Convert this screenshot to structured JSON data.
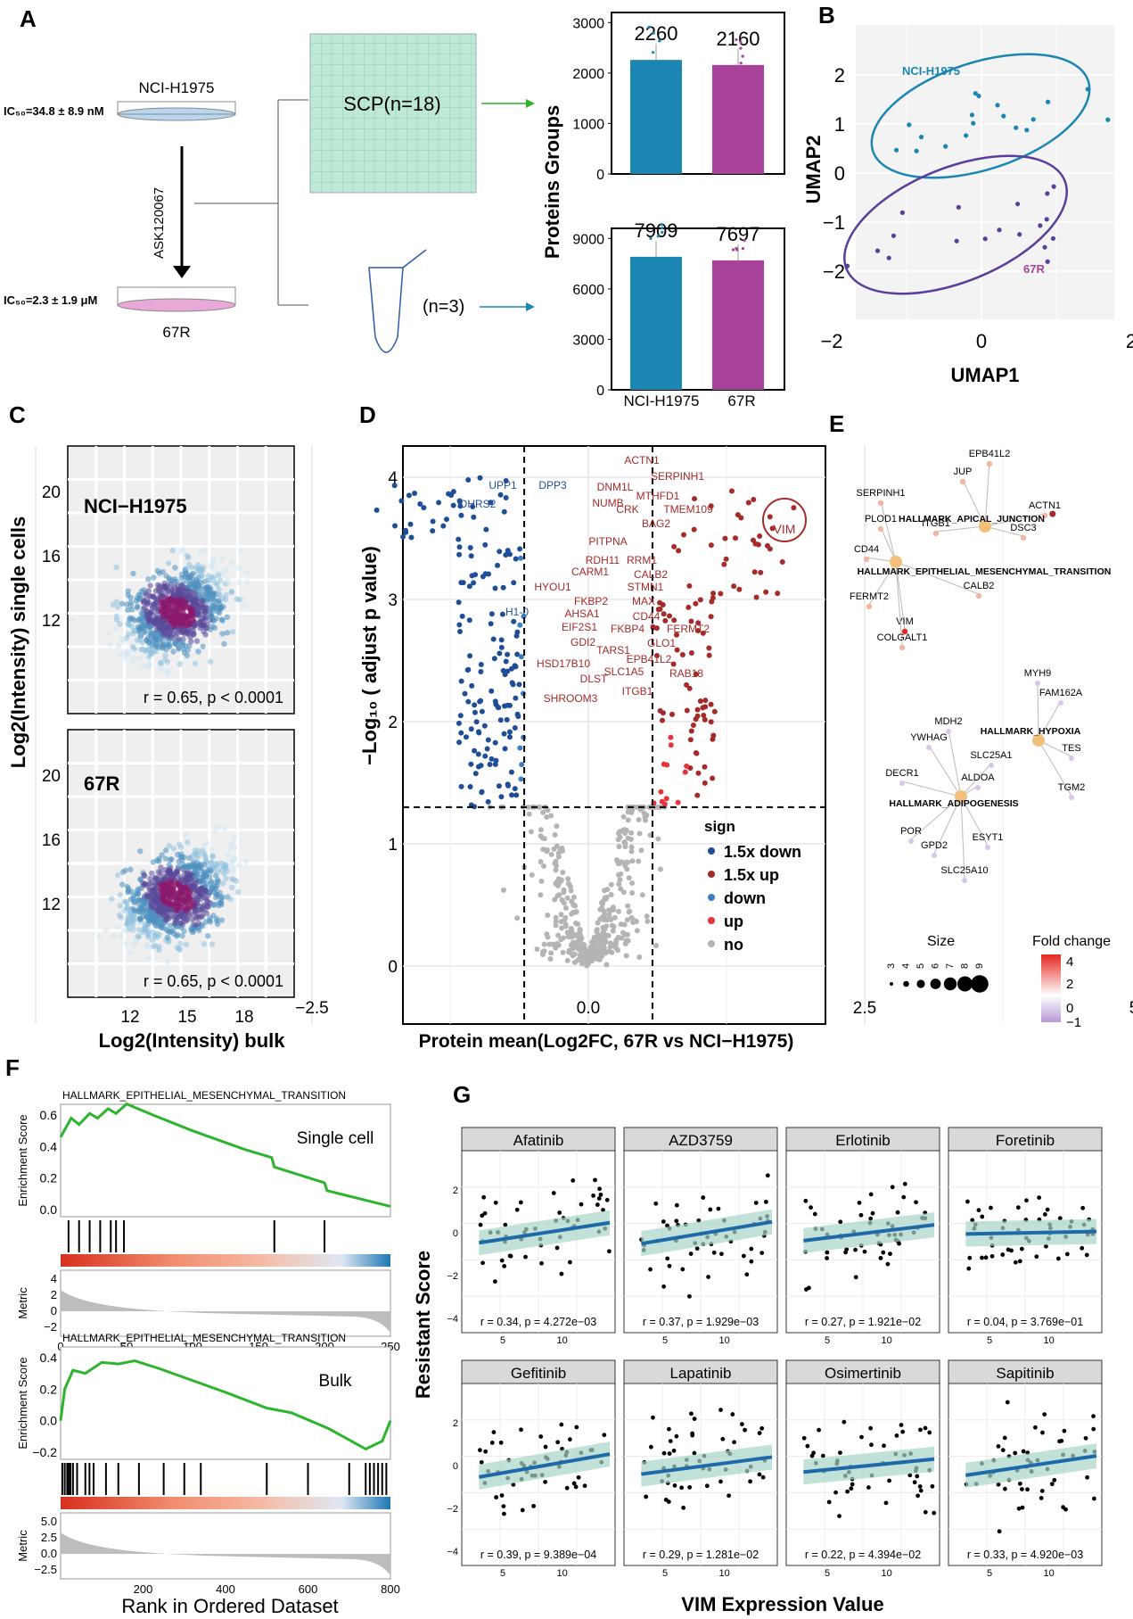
{
  "colors": {
    "ctrl": "#1a86b1",
    "res": "#a8419a",
    "down15": "#1f4e96",
    "up15": "#a52a2a",
    "down": "#3a7fc0",
    "up": "#e8333a",
    "no": "#b4b4b4",
    "green": "#2db42d",
    "reg": "#1e6aa8",
    "band": "#a8d5c9"
  },
  "panelA": {
    "label": "A",
    "cell_top": "NCI-H1975",
    "ic50_top": "IC₅₀=34.8 ± 8.9 nM",
    "drug": "ASK120067",
    "ic50_bottom": "IC₅₀=2.3 ± 1.9 μM",
    "cell_bottom": "67R",
    "scp": "SCP(n=18)",
    "bulk_n": "(n=3)",
    "ylabel": "Proteins Groups",
    "xcats": [
      "NCI-H1975",
      "67R"
    ]
  },
  "chart_data": [
    {
      "type": "bar",
      "id": "A-top",
      "categories": [
        "NCI-H1975",
        "67R"
      ],
      "values": [
        2260,
        2160
      ],
      "data_labels": [
        "2260",
        "2160"
      ],
      "yticks": [
        "0",
        "1000",
        "2000",
        "3000"
      ],
      "ylim": [
        0,
        3200
      ]
    },
    {
      "type": "bar",
      "id": "A-bottom",
      "categories": [
        "NCI-H1975",
        "67R"
      ],
      "values": [
        7909,
        7697
      ],
      "data_labels": [
        "7909",
        "7697"
      ],
      "yticks": [
        "0",
        "3000",
        "6000",
        "9000"
      ],
      "ylim": [
        0,
        9600
      ]
    },
    {
      "type": "scatter",
      "id": "B",
      "xlabel": "UMAP1",
      "ylabel": "UMAP2",
      "xticks": [
        "−2",
        "0",
        "2"
      ],
      "yticks": [
        "2",
        "1",
        "0",
        "−1",
        "−2"
      ],
      "groups": [
        "NCI-H1975",
        "67R"
      ]
    },
    {
      "type": "scatter",
      "id": "C",
      "ylabel": "Log2(Intensity) single cells",
      "xlabel": "Log2(Intensity) bulk",
      "xticks": [
        "12",
        "15",
        "18"
      ],
      "yticks_top": [
        "20",
        "16",
        "12"
      ],
      "yticks_bottom": [
        "20",
        "16",
        "12"
      ],
      "panels": [
        {
          "name": "NCI−H1975",
          "stat": "r = 0.65, p < 0.0001"
        },
        {
          "name": "67R",
          "stat": "r = 0.65, p < 0.0001"
        }
      ]
    },
    {
      "type": "scatter",
      "id": "D",
      "xlabel": "Protein mean(Log2FC, 67R vs NCI−H1975)",
      "ylabel": "−Log₁₀ ( adjust p value)",
      "xticks": [
        "−2.5",
        "0.0",
        "2.5",
        "5.0"
      ],
      "yticks": [
        "0",
        "1",
        "2",
        "3",
        "4"
      ],
      "legend_title": "sign",
      "legend": [
        "1.5x down",
        "1.5x up",
        "down",
        "up",
        "no"
      ],
      "labels_down": [
        "UPP1",
        "DPP3",
        "DHRS2",
        "H1-0"
      ],
      "labels_up": [
        "ACTN1",
        "SERPINH1",
        "DNM1L",
        "MTHFD1",
        "NUMB",
        "CRK",
        "TMEM109",
        "BAG2",
        "PITPNA",
        "RDH11",
        "RRM1",
        "CARM1",
        "CALB2",
        "HYOU1",
        "STMN1",
        "FKBP2",
        "MAX",
        "AHSA1",
        "CD44",
        "EIF2S1",
        "FKBP4",
        "FERMT2",
        "GDI2",
        "GLO1",
        "TARS1",
        "EPB41L2",
        "HSD17B10",
        "SLC1A5",
        "RAB18",
        "DLST",
        "ITGB1",
        "SHROOM3"
      ],
      "highlight": "VIM"
    },
    {
      "type": "line",
      "id": "F-top",
      "title": "HALLMARK_EPITHELIAL_MESENCHYMAL_TRANSITION",
      "label": "Single cell",
      "ylabel": "Enrichment Score",
      "metric": "Metric",
      "yticks": [
        "0.6",
        "0.4",
        "0.2",
        "0.0"
      ],
      "mticks": [
        "4",
        "2",
        "0",
        "−2"
      ],
      "xticks": [
        "0",
        "50",
        "100",
        "150",
        "200",
        "250"
      ]
    },
    {
      "type": "line",
      "id": "F-bottom",
      "title": "HALLMARK_EPITHELIAL_MESENCHYMAL_TRANSITION",
      "label": "Bulk",
      "ylabel": "Enrichment Score",
      "metric": "Metric",
      "yticks": [
        "0.4",
        "0.2",
        "0.0",
        "−0.2"
      ],
      "mticks": [
        "5.0",
        "2.5",
        "0.0",
        "−2.5"
      ],
      "xticks": [
        "200",
        "400",
        "600",
        "800"
      ],
      "xlabel": "Rank in Ordered Dataset"
    },
    {
      "type": "scatter",
      "id": "G",
      "ylabel": "Resistant Score",
      "xlabel": "VIM Expression Value",
      "xticks": [
        "5",
        "10"
      ],
      "yticks": [
        "2",
        "0",
        "−2",
        "−4"
      ],
      "facets": [
        {
          "name": "Afatinib",
          "stat": "r = 0.34, p = 4.272e−03",
          "slope": 0.34
        },
        {
          "name": "AZD3759",
          "stat": "r = 0.37, p = 1.929e−03",
          "slope": 0.37
        },
        {
          "name": "Erlotinib",
          "stat": "r = 0.27, p = 1.921e−02",
          "slope": 0.27
        },
        {
          "name": "Foretinib",
          "stat": "r = 0.04, p = 3.769e−01",
          "slope": 0.04
        },
        {
          "name": "Gefitinib",
          "stat": "r = 0.39, p = 9.389e−04",
          "slope": 0.39
        },
        {
          "name": "Lapatinib",
          "stat": "r = 0.29, p = 1.281e−02",
          "slope": 0.29
        },
        {
          "name": "Osimertinib",
          "stat": "r = 0.22, p = 4.394e−02",
          "slope": 0.22
        },
        {
          "name": "Sapitinib",
          "stat": "r = 0.33, p = 4.920e−03",
          "slope": 0.33
        }
      ]
    }
  ],
  "panelE": {
    "label": "E",
    "size_title": "Size",
    "size_ticks": [
      "3",
      "4",
      "5",
      "6",
      "7",
      "8",
      "9"
    ],
    "fc_title": "Fold change",
    "fc_ticks": [
      "4",
      "2",
      "0",
      "−1"
    ],
    "hubs": [
      "HALLMARK_APICAL_JUNCTION",
      "HALLMARK_EPITHELIAL_MESENCHYMAL_TRANSITION",
      "HALLMARK_HYPOXIA",
      "HALLMARK_ADIPOGENESIS"
    ],
    "genes1": [
      "EPB41L2",
      "JUP",
      "SERPINH1",
      "ACTN1",
      "PLOD1",
      "ITGB1",
      "DSC3",
      "CD44",
      "CALB2",
      "FERMT2",
      "VIM",
      "COLGALT1"
    ],
    "genes2": [
      "MYH9",
      "FAM162A",
      "MDH2",
      "YWHAG",
      "TES",
      "SLC25A1",
      "DECR1",
      "ALDOA",
      "TGM2",
      "POR",
      "GPD2",
      "ESYT1",
      "SLC25A10"
    ]
  },
  "labels": {
    "B": "B",
    "C": "C",
    "D": "D",
    "F": "F",
    "G": "G"
  }
}
